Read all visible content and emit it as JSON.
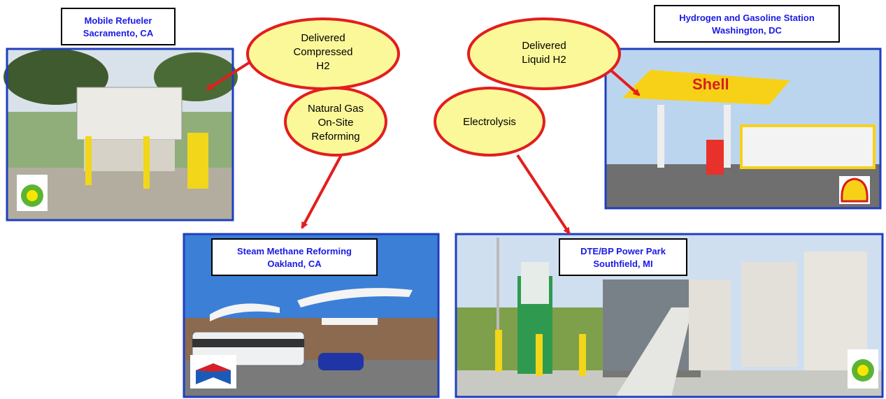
{
  "sites": [
    {
      "title": "Mobile Refueler",
      "location": "Sacramento, CA"
    },
    {
      "title": "Hydrogen and Gasoline Station",
      "location": "Washington, DC"
    },
    {
      "title": "Steam Methane Reforming",
      "location": "Oakland, CA"
    },
    {
      "title": "DTE/BP Power Park",
      "location": "Southfield, MI"
    }
  ],
  "pathways": [
    {
      "lines": [
        "Delivered",
        "Compressed",
        "H2"
      ]
    },
    {
      "lines": [
        "Delivered",
        "Liquid H2"
      ]
    },
    {
      "lines": [
        "Natural Gas",
        "On-Site",
        "Reforming"
      ]
    },
    {
      "lines": [
        "Electrolysis"
      ]
    }
  ]
}
